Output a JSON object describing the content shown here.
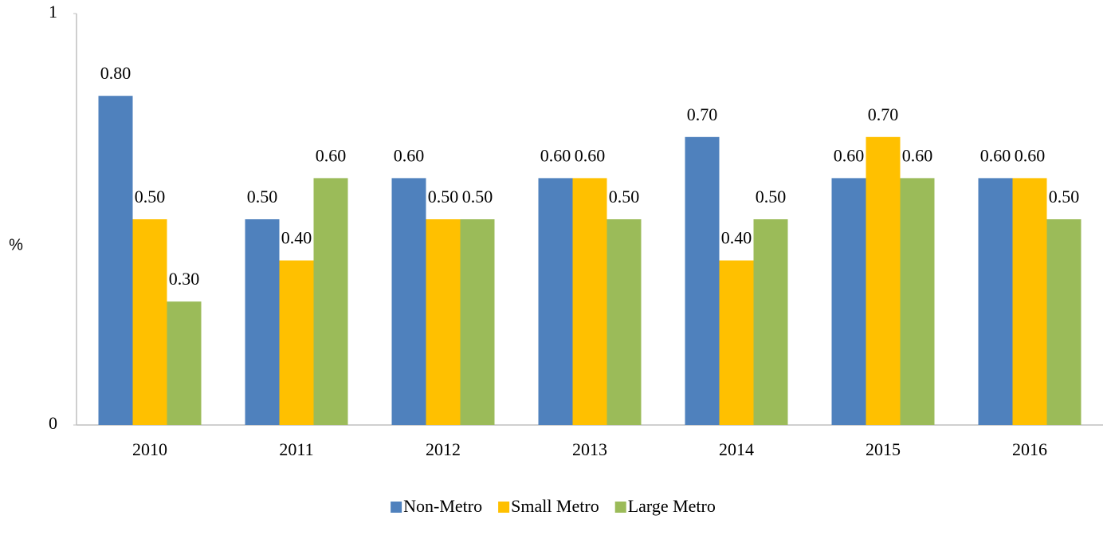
{
  "chart_data": {
    "type": "bar",
    "ylabel": "%",
    "categories": [
      "2010",
      "2011",
      "2012",
      "2013",
      "2014",
      "2015",
      "2016"
    ],
    "series": [
      {
        "name": "Non-Metro",
        "color": "#4f81bd",
        "values": [
          0.8,
          0.5,
          0.6,
          0.6,
          0.7,
          0.6,
          0.6
        ],
        "value_labels": [
          "0.80",
          "0.50",
          "0.60",
          "0.60",
          "0.70",
          "0.60",
          "0.60"
        ]
      },
      {
        "name": "Small Metro",
        "color": "#ffc000",
        "values": [
          0.5,
          0.4,
          0.5,
          0.6,
          0.4,
          0.7,
          0.6
        ],
        "value_labels": [
          "0.50",
          "0.40",
          "0.50",
          "0.60",
          "0.40",
          "0.70",
          "0.60"
        ]
      },
      {
        "name": "Large Metro",
        "color": "#9bbb59",
        "values": [
          0.3,
          0.6,
          0.5,
          0.5,
          0.5,
          0.6,
          0.5
        ],
        "value_labels": [
          "0.30",
          "0.60",
          "0.50",
          "0.50",
          "0.50",
          "0.60",
          "0.50"
        ]
      }
    ],
    "ylim": [
      0,
      1
    ],
    "yticks": [
      0,
      1
    ],
    "legend": "bottom"
  }
}
